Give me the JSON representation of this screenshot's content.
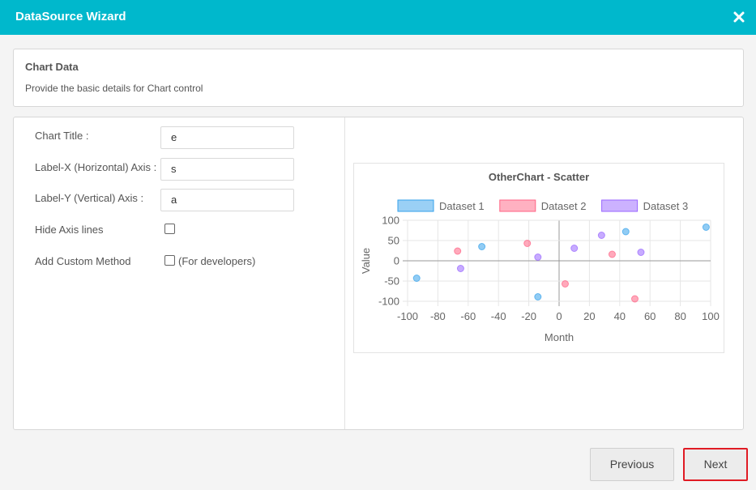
{
  "window": {
    "title": "DataSource Wizard"
  },
  "header": {
    "title": "Chart Data",
    "subtitle": "Provide the basic details for Chart control"
  },
  "form": {
    "chart_title_label": "Chart Title :",
    "chart_title_value": "e",
    "label_x_label": "Label-X (Horizontal) Axis :",
    "label_x_value": "s",
    "label_y_label": "Label-Y (Vertical) Axis :",
    "label_y_value": "a",
    "hide_axis_label": "Hide Axis lines",
    "hide_axis_checked": false,
    "custom_method_label": "Add Custom Method",
    "custom_method_note": "(For developers)",
    "custom_method_checked": false
  },
  "buttons": {
    "previous": "Previous",
    "next": "Next"
  },
  "colors": {
    "accent": "#00b8cc",
    "highlight": "#e01b24"
  },
  "chart_data": {
    "type": "scatter",
    "title": "OtherChart - Scatter",
    "xlabel": "Month",
    "ylabel": "Value",
    "xlim": [
      -100,
      100
    ],
    "ylim": [
      -100,
      100
    ],
    "x_ticks": [
      -100,
      -80,
      -60,
      -40,
      -20,
      0,
      20,
      40,
      60,
      80,
      100
    ],
    "y_ticks": [
      100,
      50,
      0,
      -50,
      -100
    ],
    "grid": true,
    "legend_position": "top",
    "series": [
      {
        "name": "Dataset 1",
        "color": "#36a2eb",
        "points": [
          [
            -94,
            -43
          ],
          [
            -51,
            35
          ],
          [
            -14,
            -89
          ],
          [
            44,
            72
          ],
          [
            97,
            83
          ]
        ]
      },
      {
        "name": "Dataset 2",
        "color": "#ff6384",
        "points": [
          [
            -67,
            24
          ],
          [
            -21,
            43
          ],
          [
            4,
            -57
          ],
          [
            35,
            16
          ],
          [
            50,
            -94
          ]
        ]
      },
      {
        "name": "Dataset 3",
        "color": "#9966ff",
        "points": [
          [
            -65,
            -19
          ],
          [
            -14,
            9
          ],
          [
            10,
            31
          ],
          [
            28,
            63
          ],
          [
            54,
            21
          ]
        ]
      }
    ]
  }
}
